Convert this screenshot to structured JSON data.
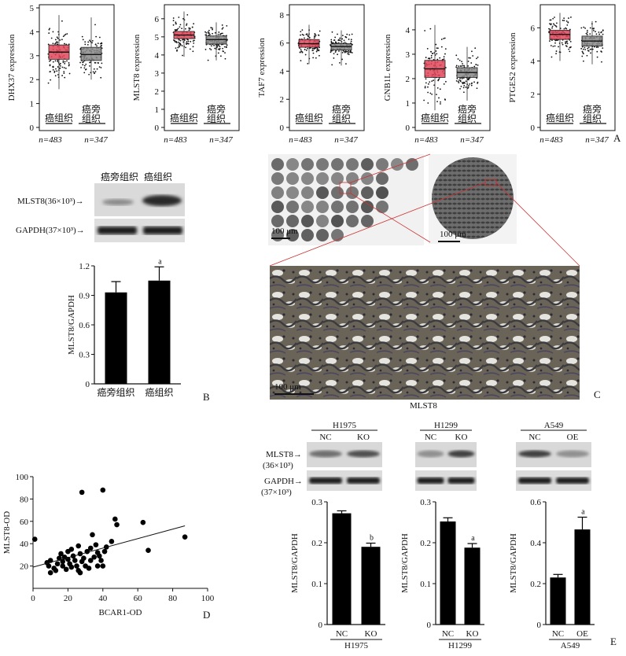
{
  "panel_letters": [
    "A",
    "B",
    "C",
    "D",
    "E"
  ],
  "common": {
    "tumor": "癌组织",
    "adj": "癌旁组织",
    "adj_l1": "癌旁",
    "adj_l2": "组织",
    "nc": "NC",
    "ko": "KO",
    "oe": "OE",
    "mlst8": "MLST8"
  },
  "panel_a": {
    "n_tumor": "n=483",
    "n_normal": "n=347",
    "colors": {
      "tumor": "#e2475a",
      "normal": "#8a8a8a"
    },
    "boxplots": [
      {
        "ylabel": "DHX37 expression",
        "yticks": [
          "0",
          "1",
          "2",
          "3",
          "4",
          "5"
        ],
        "ymax": 5,
        "tumor": {
          "q1": 2.85,
          "med": 3.15,
          "q3": 3.45,
          "lo": 1.6,
          "hi": 4.7
        },
        "normal": {
          "q1": 2.8,
          "med": 3.05,
          "q3": 3.35,
          "lo": 2.0,
          "hi": 4.6
        }
      },
      {
        "ylabel": "MLST8 expression",
        "yticks": [
          "0",
          "1",
          "2",
          "3",
          "4",
          "5",
          "6"
        ],
        "ymax": 6.6,
        "tumor": {
          "q1": 4.9,
          "med": 5.1,
          "q3": 5.3,
          "lo": 3.9,
          "hi": 6.4
        },
        "normal": {
          "q1": 4.6,
          "med": 4.85,
          "q3": 5.05,
          "lo": 3.7,
          "hi": 5.8
        }
      },
      {
        "ylabel": "TAF7 expression",
        "yticks": [
          "0",
          "2",
          "4",
          "6",
          "8"
        ],
        "ymax": 8.5,
        "tumor": {
          "q1": 5.7,
          "med": 5.95,
          "q3": 6.25,
          "lo": 4.5,
          "hi": 7.3
        },
        "normal": {
          "q1": 5.5,
          "med": 5.75,
          "q3": 5.95,
          "lo": 4.4,
          "hi": 6.9
        }
      },
      {
        "ylabel": "GNB1L expression",
        "yticks": [
          "0",
          "1",
          "2",
          "3",
          "4"
        ],
        "ymax": 4.9,
        "tumor": {
          "q1": 2.05,
          "med": 2.4,
          "q3": 2.75,
          "lo": 0.7,
          "hi": 4.2
        },
        "normal": {
          "q1": 2.05,
          "med": 2.25,
          "q3": 2.45,
          "lo": 1.1,
          "hi": 3.3
        }
      },
      {
        "ylabel": "PTGES2 expression",
        "yticks": [
          "0",
          "2",
          "4",
          "6"
        ],
        "ymax": 7.2,
        "tumor": {
          "q1": 5.3,
          "med": 5.6,
          "q3": 5.85,
          "lo": 4.0,
          "hi": 6.9
        },
        "normal": {
          "q1": 4.9,
          "med": 5.2,
          "q3": 5.5,
          "lo": 3.8,
          "hi": 6.4
        }
      }
    ]
  },
  "panel_b": {
    "blot_labels": {
      "mlst8": "MLST8(36×10³)→",
      "gapdh": "GAPDH(37×10³)→"
    },
    "lane_labels": [
      "癌旁组织",
      "癌组织"
    ]
  },
  "panel_c": {
    "scale_bars": [
      "100 μm",
      "100 μm",
      "100 μm"
    ],
    "caption": "MLST8"
  },
  "panel_d": {
    "xlabel": "BCAR1-OD",
    "ylabel": "MLST8-OD"
  },
  "panel_e": {
    "blot_labels": {
      "mlst8_1": "MLST8→",
      "mlst8_2": "(36×10³)",
      "gapdh_1": "GAPDH→",
      "gapdh_2": "(37×10³)"
    },
    "groups": [
      {
        "cell_line": "H1975",
        "lanes": [
          "NC",
          "KO"
        ]
      },
      {
        "cell_line": "H1299",
        "lanes": [
          "NC",
          "KO"
        ]
      },
      {
        "cell_line": "A549",
        "lanes": [
          "NC",
          "OE"
        ]
      }
    ]
  },
  "chart_data": [
    {
      "type": "bar",
      "panel": "B",
      "categories": [
        "癌旁组织",
        "癌组织"
      ],
      "values": [
        0.93,
        1.05
      ],
      "errors": [
        0.11,
        0.14
      ],
      "significance": [
        "",
        "a"
      ],
      "ylabel": "MLST8/GAPDH",
      "ylim": [
        0,
        1.2
      ],
      "yticks": [
        "0",
        "0.3",
        "0.6",
        "0.9",
        "1.2"
      ]
    },
    {
      "type": "scatter",
      "panel": "D",
      "xlabel": "BCAR1-OD",
      "ylabel": "MLST8-OD",
      "xlim": [
        0,
        100
      ],
      "ylim": [
        0,
        100
      ],
      "xticks": [
        "0",
        "20",
        "40",
        "60",
        "80",
        "100"
      ],
      "yticks": [
        "20",
        "40",
        "60",
        "80",
        "100"
      ],
      "fit_line": {
        "x": [
          0,
          87
        ],
        "y": [
          19,
          56
        ]
      },
      "points": [
        [
          1,
          44
        ],
        [
          8,
          23
        ],
        [
          9,
          20
        ],
        [
          10,
          14
        ],
        [
          10,
          25
        ],
        [
          12,
          18
        ],
        [
          13,
          16
        ],
        [
          14,
          22
        ],
        [
          15,
          27
        ],
        [
          16,
          31
        ],
        [
          17,
          24
        ],
        [
          17,
          20
        ],
        [
          18,
          28
        ],
        [
          19,
          17
        ],
        [
          20,
          33
        ],
        [
          20,
          26
        ],
        [
          21,
          22
        ],
        [
          22,
          19
        ],
        [
          22,
          35
        ],
        [
          23,
          29
        ],
        [
          24,
          25
        ],
        [
          25,
          20
        ],
        [
          26,
          38
        ],
        [
          26,
          16
        ],
        [
          27,
          14
        ],
        [
          27,
          31
        ],
        [
          28,
          86
        ],
        [
          28,
          24
        ],
        [
          29,
          27
        ],
        [
          30,
          20
        ],
        [
          31,
          33
        ],
        [
          32,
          18
        ],
        [
          33,
          36
        ],
        [
          33,
          25
        ],
        [
          34,
          48
        ],
        [
          35,
          28
        ],
        [
          36,
          39
        ],
        [
          37,
          32
        ],
        [
          37,
          20
        ],
        [
          38,
          29
        ],
        [
          39,
          25
        ],
        [
          40,
          88
        ],
        [
          40,
          20
        ],
        [
          41,
          33
        ],
        [
          42,
          37
        ],
        [
          45,
          42
        ],
        [
          47,
          62
        ],
        [
          48,
          57
        ],
        [
          63,
          59
        ],
        [
          66,
          34
        ],
        [
          87,
          46
        ]
      ]
    },
    {
      "type": "bar",
      "panel": "E-H1975",
      "categories": [
        "NC",
        "KO"
      ],
      "values": [
        0.272,
        0.19
      ],
      "errors": [
        0.006,
        0.009
      ],
      "significance": [
        "",
        "b"
      ],
      "ylabel": "MLST8/GAPDH",
      "ylim": [
        0,
        0.3
      ],
      "yticks": [
        "0",
        "0.1",
        "0.2",
        "0.3"
      ],
      "xgroup": "H1975"
    },
    {
      "type": "bar",
      "panel": "E-H1299",
      "categories": [
        "NC",
        "KO"
      ],
      "values": [
        0.252,
        0.188
      ],
      "errors": [
        0.009,
        0.01
      ],
      "significance": [
        "",
        "a"
      ],
      "ylabel": "MLST8/GAPDH",
      "ylim": [
        0,
        0.3
      ],
      "yticks": [
        "0",
        "0.1",
        "0.2",
        "0.3"
      ],
      "xgroup": "H1299"
    },
    {
      "type": "bar",
      "panel": "E-A549",
      "categories": [
        "NC",
        "OE"
      ],
      "values": [
        0.23,
        0.465
      ],
      "errors": [
        0.015,
        0.06
      ],
      "significance": [
        "",
        "a"
      ],
      "ylabel": "MLST8/GAPDH",
      "ylim": [
        0,
        0.6
      ],
      "yticks": [
        "0",
        "0.2",
        "0.4",
        "0.6"
      ],
      "xgroup": "A549"
    }
  ]
}
